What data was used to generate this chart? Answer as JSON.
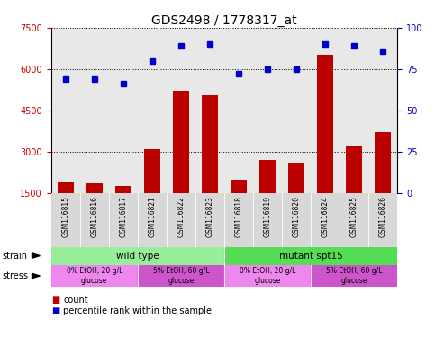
{
  "title": "GDS2498 / 1778317_at",
  "samples": [
    "GSM116815",
    "GSM116816",
    "GSM116817",
    "GSM116821",
    "GSM116822",
    "GSM116823",
    "GSM116818",
    "GSM116819",
    "GSM116820",
    "GSM116824",
    "GSM116825",
    "GSM116826"
  ],
  "counts": [
    1900,
    1870,
    1750,
    3100,
    5200,
    5050,
    2000,
    2700,
    2600,
    6500,
    3200,
    3700
  ],
  "percentiles": [
    69,
    69,
    66,
    80,
    89,
    90,
    72,
    75,
    75,
    90,
    89,
    86
  ],
  "bar_color": "#bb0000",
  "dot_color": "#0000cc",
  "ylim_left": [
    1500,
    7500
  ],
  "ylim_right": [
    0,
    100
  ],
  "yticks_left": [
    1500,
    3000,
    4500,
    6000,
    7500
  ],
  "yticks_right": [
    0,
    25,
    50,
    75,
    100
  ],
  "ylabel_left_color": "#cc0000",
  "ylabel_right_color": "#0000cc",
  "plot_bg_color": "#e8e8e8",
  "strain_labels": [
    {
      "text": "wild type",
      "start": 0,
      "end": 6,
      "color": "#99ee99"
    },
    {
      "text": "mutant spt15",
      "start": 6,
      "end": 12,
      "color": "#55dd55"
    }
  ],
  "stress_labels": [
    {
      "text": "0% EtOH, 20 g/L\nglucose",
      "start": 0,
      "end": 3,
      "color": "#ee88ee"
    },
    {
      "text": "5% EtOH, 60 g/L\nglucose",
      "start": 3,
      "end": 6,
      "color": "#cc55cc"
    },
    {
      "text": "0% EtOH, 20 g/L\nglucose",
      "start": 6,
      "end": 9,
      "color": "#ee88ee"
    },
    {
      "text": "5% EtOH, 60 g/L\nglucose",
      "start": 9,
      "end": 12,
      "color": "#cc55cc"
    }
  ],
  "legend_count_color": "#bb0000",
  "legend_pct_color": "#0000cc",
  "tick_label_fontsize": 7,
  "title_fontsize": 10,
  "sample_fontsize": 5.5,
  "strain_fontsize": 7.5,
  "stress_fontsize": 5.5,
  "label_fontsize": 7
}
